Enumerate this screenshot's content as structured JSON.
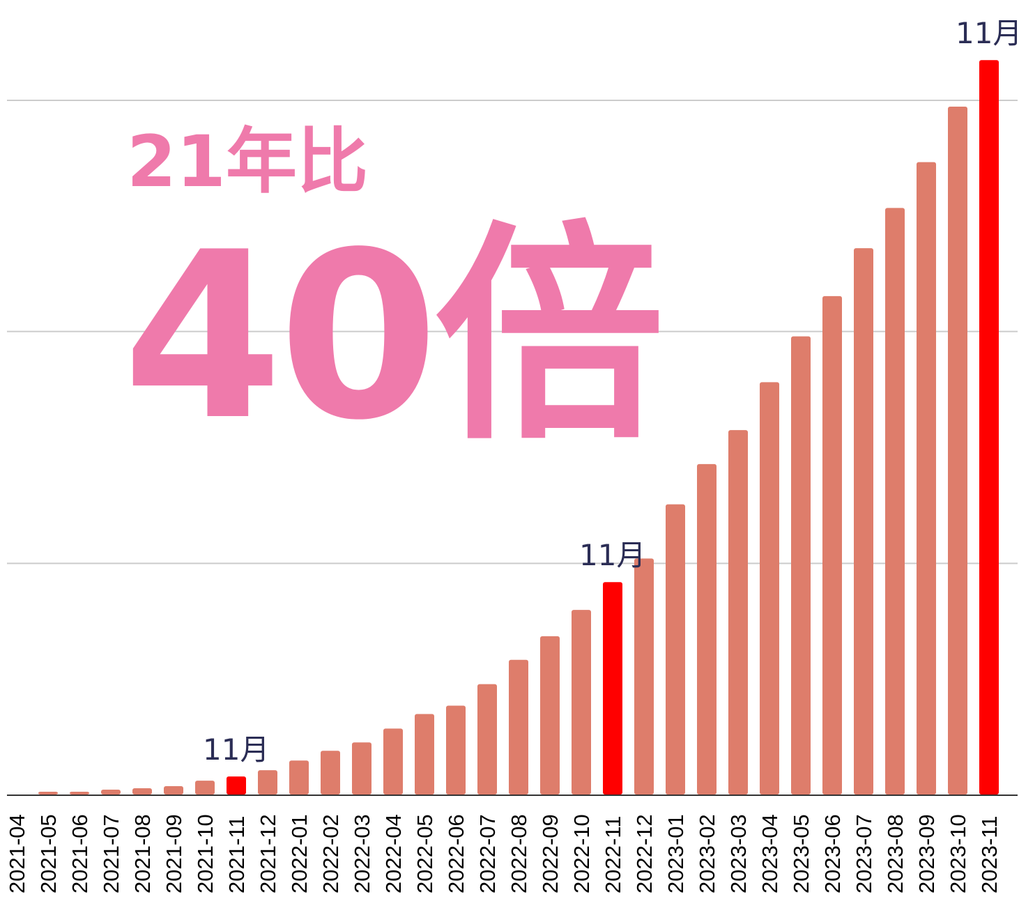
{
  "overlay": {
    "subtitle": "21年比",
    "headline": "40倍"
  },
  "colors": {
    "bar": "#de7d6b",
    "highlight": "#ff0000",
    "overlay_text": "#ef7aab",
    "annotation_text": "#2b2d55",
    "grid": "#cccccc",
    "axis": "#333333"
  },
  "chart_data": {
    "type": "bar",
    "title": "",
    "xlabel": "",
    "ylabel": "",
    "ylim": [
      0,
      100
    ],
    "grid": true,
    "gridlines": [
      33.3,
      66.7,
      100
    ],
    "y_tick_labels_shown": false,
    "categories": [
      "2021-04",
      "2021-05",
      "2021-06",
      "2021-07",
      "2021-08",
      "2021-09",
      "2021-10",
      "2021-11",
      "2021-12",
      "2022-01",
      "2022-02",
      "2022-03",
      "2022-04",
      "2022-05",
      "2022-06",
      "2022-07",
      "2022-08",
      "2022-09",
      "2022-10",
      "2022-11",
      "2022-12",
      "2023-01",
      "2023-02",
      "2023-03",
      "2023-04",
      "2023-05",
      "2023-06",
      "2023-07",
      "2023-08",
      "2023-09",
      "2023-10",
      "2023-11"
    ],
    "values": [
      0,
      0.4,
      0.4,
      0.7,
      0.9,
      1.2,
      2.0,
      2.6,
      3.5,
      4.9,
      6.3,
      7.5,
      9.5,
      11.6,
      12.8,
      15.9,
      19.4,
      22.8,
      26.6,
      30.6,
      34.0,
      41.8,
      47.6,
      52.5,
      59.4,
      66.0,
      71.8,
      78.7,
      84.5,
      91.1,
      99.1,
      105.8
    ],
    "highlighted": [
      "2021-11",
      "2022-11",
      "2023-11"
    ],
    "annotations": [
      {
        "category": "2021-11",
        "text": "11月"
      },
      {
        "category": "2022-11",
        "text": "11月"
      },
      {
        "category": "2023-11",
        "text": "11月"
      }
    ]
  }
}
